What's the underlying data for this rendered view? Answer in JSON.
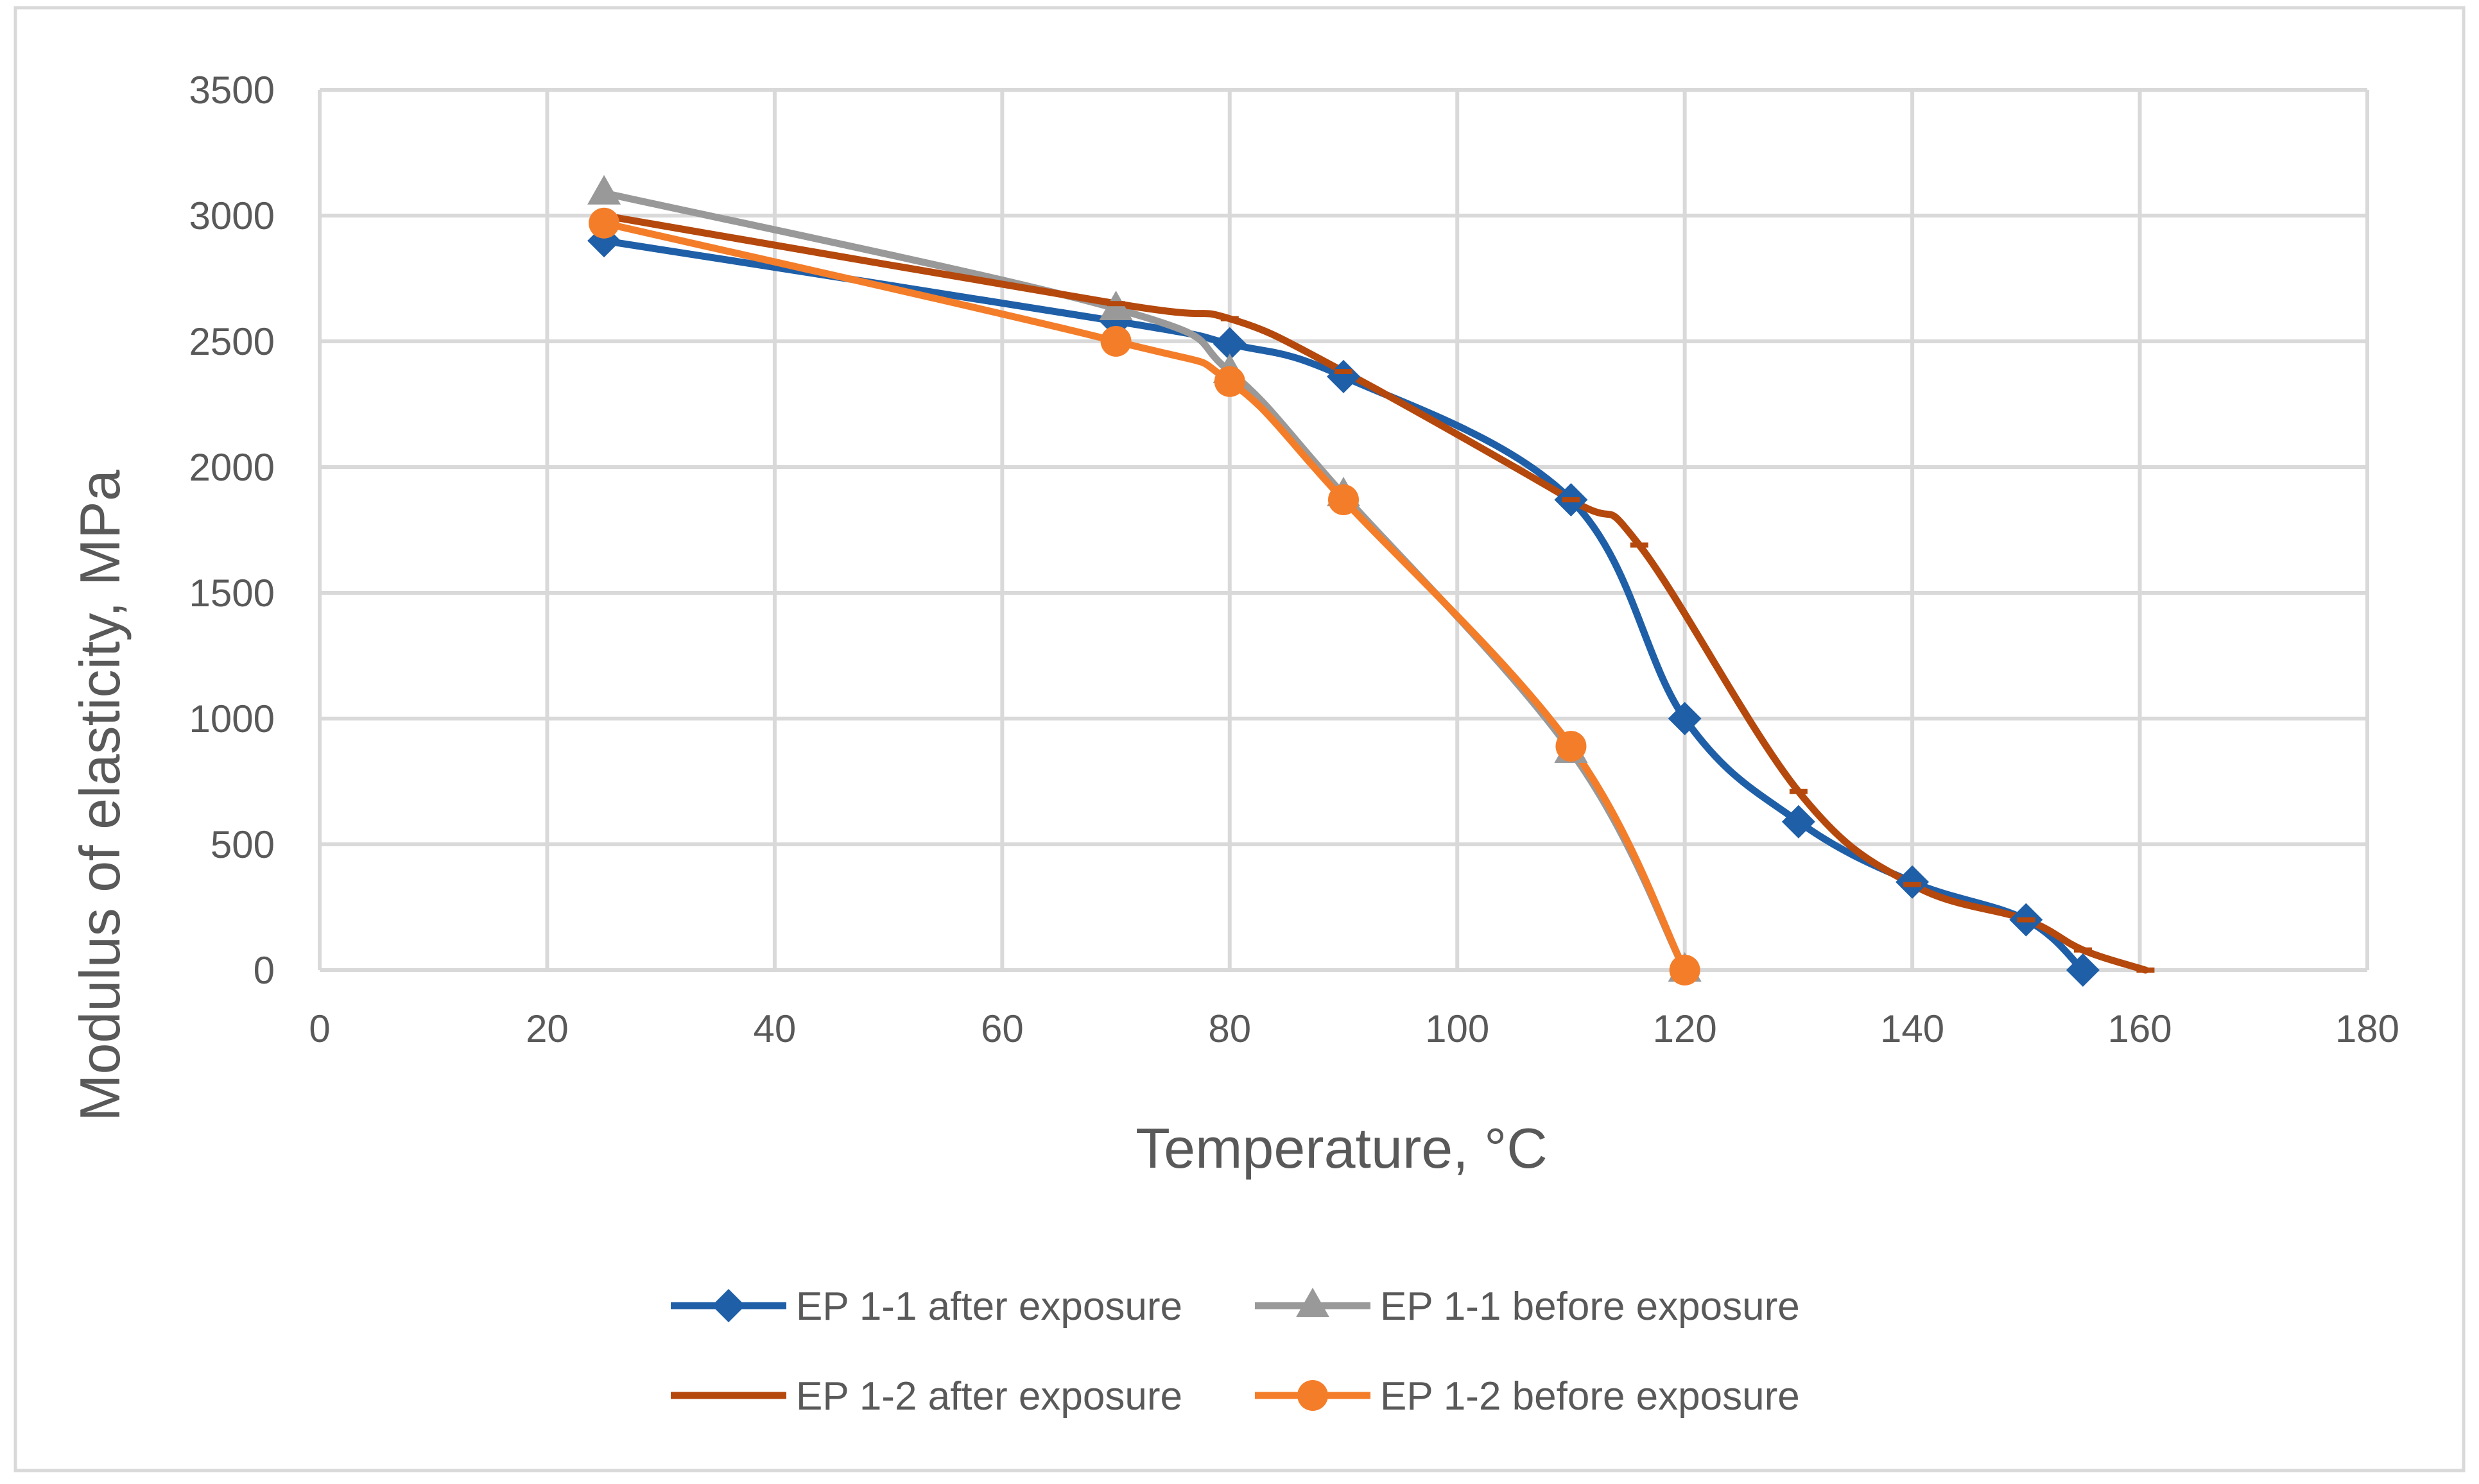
{
  "chart_data": {
    "type": "line",
    "title": "",
    "xlabel": "Temperature, °C",
    "ylabel": "Modulus of elasticity, MPa",
    "xlim": [
      0,
      180
    ],
    "ylim": [
      0,
      3500
    ],
    "xticks": [
      0,
      20,
      40,
      60,
      80,
      100,
      120,
      140,
      160,
      180
    ],
    "yticks": [
      0,
      500,
      1000,
      1500,
      2000,
      2500,
      3000,
      3500
    ],
    "grid": true,
    "legend_position": "bottom",
    "series": [
      {
        "name": "EP 1-1 after exposure",
        "color": "#1f5fa8",
        "marker": "diamond",
        "smooth": true,
        "x": [
          25,
          70,
          80,
          90,
          110,
          120,
          130,
          140,
          150,
          155
        ],
        "y": [
          2900,
          2580,
          2490,
          2360,
          1870,
          1000,
          590,
          350,
          200,
          0
        ]
      },
      {
        "name": "EP 1-1 before exposure",
        "color": "#999999",
        "marker": "triangle",
        "smooth": true,
        "x": [
          25,
          70,
          80,
          90,
          110,
          120
        ],
        "y": [
          3090,
          2630,
          2380,
          1890,
          870,
          0
        ]
      },
      {
        "name": "EP 1-2 after exposure",
        "color": "#b5480c",
        "marker": "dash",
        "smooth": true,
        "x": [
          25,
          70,
          80,
          90,
          110,
          116,
          130,
          140,
          150,
          155,
          160.5
        ],
        "y": [
          3000,
          2650,
          2590,
          2380,
          1870,
          1690,
          710,
          340,
          200,
          80,
          0
        ]
      },
      {
        "name": "EP 1-2 before exposure",
        "color": "#f47d2a",
        "marker": "circle",
        "smooth": true,
        "x": [
          25,
          70,
          80,
          90,
          110,
          120
        ],
        "y": [
          2970,
          2500,
          2340,
          1870,
          890,
          0
        ]
      }
    ]
  }
}
